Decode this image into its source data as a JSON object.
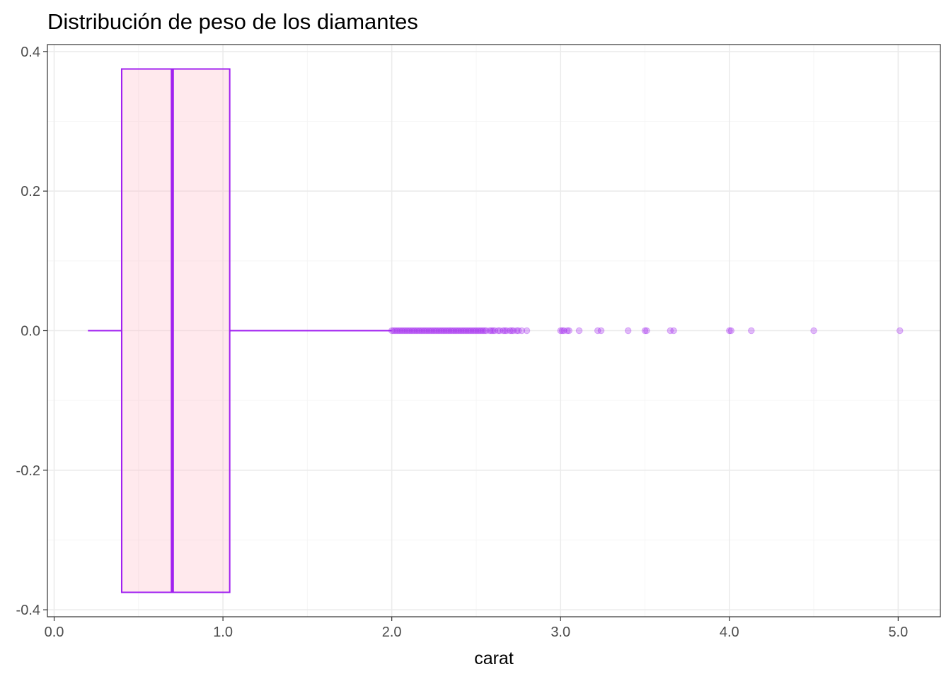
{
  "chart_data": {
    "type": "boxplot",
    "title": "Distribución de peso de los diamantes",
    "xlabel": "carat",
    "ylabel": "",
    "orientation": "horizontal",
    "xlim": [
      -0.04,
      5.25
    ],
    "ylim": [
      -0.41,
      0.41
    ],
    "x_ticks": [
      0,
      1,
      2,
      3,
      4,
      5
    ],
    "x_tick_labels": [
      "0.0",
      "1.0",
      "2.0",
      "3.0",
      "4.0",
      "5.0"
    ],
    "y_ticks": [
      -0.4,
      -0.2,
      0,
      0.2,
      0.4
    ],
    "y_tick_labels": [
      "-0.4",
      "-0.2",
      "0.0",
      "0.2",
      "0.4"
    ],
    "grid": true,
    "box": {
      "min": 0.2,
      "q1": 0.4,
      "median": 0.7,
      "q3": 1.04,
      "whisker_high": 2.0,
      "y_center": 0,
      "half_width": 0.375
    },
    "outliers": [
      2.0,
      2.01,
      2.02,
      2.03,
      2.04,
      2.05,
      2.06,
      2.07,
      2.08,
      2.09,
      2.1,
      2.11,
      2.12,
      2.13,
      2.14,
      2.15,
      2.16,
      2.17,
      2.18,
      2.19,
      2.2,
      2.21,
      2.22,
      2.23,
      2.24,
      2.25,
      2.26,
      2.27,
      2.28,
      2.29,
      2.3,
      2.31,
      2.32,
      2.33,
      2.34,
      2.35,
      2.36,
      2.37,
      2.38,
      2.39,
      2.4,
      2.41,
      2.42,
      2.43,
      2.44,
      2.45,
      2.46,
      2.47,
      2.48,
      2.49,
      2.5,
      2.51,
      2.52,
      2.53,
      2.54,
      2.55,
      2.56,
      2.58,
      2.59,
      2.6,
      2.61,
      2.63,
      2.64,
      2.66,
      2.67,
      2.68,
      2.7,
      2.71,
      2.72,
      2.74,
      2.75,
      2.77,
      2.8,
      3.0,
      3.01,
      3.02,
      3.04,
      3.05,
      3.11,
      3.22,
      3.24,
      3.4,
      3.5,
      3.51,
      3.65,
      3.67,
      4.0,
      4.01,
      4.13,
      4.5,
      5.01
    ],
    "colors": {
      "box_stroke": "#a020f0",
      "box_fill": "#ffc0cb",
      "outlier": "#a020f0",
      "grid_major": "#ebebeb",
      "grid_minor": "#f5f5f5",
      "panel_border": "#333333"
    }
  }
}
